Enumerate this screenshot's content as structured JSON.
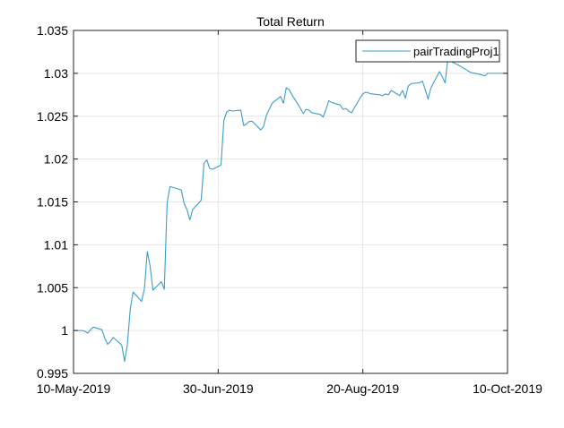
{
  "chart_data": {
    "type": "line",
    "title": "Total Return",
    "xlabel": "",
    "ylabel": "",
    "x_start": "2019-05-10",
    "x_end": "2019-10-10",
    "xlim": [
      "2019-05-10",
      "2019-10-10"
    ],
    "ylim": [
      0.995,
      1.035
    ],
    "x_ticks": [
      "2019-05-10",
      "2019-06-30",
      "2019-08-20",
      "2019-10-10"
    ],
    "x_tick_labels": [
      "10-May-2019",
      "30-Jun-2019",
      "20-Aug-2019",
      "10-Oct-2019"
    ],
    "y_ticks": [
      0.995,
      1,
      1.005,
      1.01,
      1.015,
      1.02,
      1.025,
      1.03,
      1.035
    ],
    "y_tick_labels": [
      "0.995",
      "1",
      "1.005",
      "1.01",
      "1.015",
      "1.02",
      "1.025",
      "1.03",
      "1.035"
    ],
    "grid": true,
    "legend_position": "top-right",
    "series": [
      {
        "name": "pairTradingProj1",
        "color": "#3d9dc7",
        "x": [
          "2019-05-10",
          "2019-05-13",
          "2019-05-14",
          "2019-05-15",
          "2019-05-16",
          "2019-05-17",
          "2019-05-20",
          "2019-05-21",
          "2019-05-22",
          "2019-05-23",
          "2019-05-24",
          "2019-05-27",
          "2019-05-28",
          "2019-05-29",
          "2019-05-30",
          "2019-05-31",
          "2019-06-03",
          "2019-06-04",
          "2019-06-05",
          "2019-06-06",
          "2019-06-07",
          "2019-06-10",
          "2019-06-11",
          "2019-06-12",
          "2019-06-13",
          "2019-06-14",
          "2019-06-17",
          "2019-06-18",
          "2019-06-19",
          "2019-06-20",
          "2019-06-21",
          "2019-06-24",
          "2019-06-25",
          "2019-06-26",
          "2019-06-27",
          "2019-06-28",
          "2019-07-01",
          "2019-07-02",
          "2019-07-03",
          "2019-07-04",
          "2019-07-05",
          "2019-07-08",
          "2019-07-09",
          "2019-07-10",
          "2019-07-11",
          "2019-07-12",
          "2019-07-15",
          "2019-07-16",
          "2019-07-17",
          "2019-07-18",
          "2019-07-19",
          "2019-07-22",
          "2019-07-23",
          "2019-07-24",
          "2019-07-25",
          "2019-07-26",
          "2019-07-29",
          "2019-07-30",
          "2019-07-31",
          "2019-08-01",
          "2019-08-02",
          "2019-08-05",
          "2019-08-06",
          "2019-08-07",
          "2019-08-08",
          "2019-08-09",
          "2019-08-12",
          "2019-08-13",
          "2019-08-14",
          "2019-08-15",
          "2019-08-16",
          "2019-08-19",
          "2019-08-20",
          "2019-08-21",
          "2019-08-22",
          "2019-08-23",
          "2019-08-26",
          "2019-08-27",
          "2019-08-28",
          "2019-08-29",
          "2019-08-30",
          "2019-09-02",
          "2019-09-03",
          "2019-09-04",
          "2019-09-05",
          "2019-09-06",
          "2019-09-09",
          "2019-09-10",
          "2019-09-11",
          "2019-09-12",
          "2019-09-13",
          "2019-09-16",
          "2019-09-17",
          "2019-09-18",
          "2019-09-19",
          "2019-09-20",
          "2019-09-23",
          "2019-09-24",
          "2019-09-25",
          "2019-09-26",
          "2019-09-27",
          "2019-09-30",
          "2019-10-01",
          "2019-10-02",
          "2019-10-03",
          "2019-10-04",
          "2019-10-07",
          "2019-10-08",
          "2019-10-09",
          "2019-10-10"
        ],
        "y": [
          1.0,
          1.0,
          0.9999,
          0.9997,
          1.0001,
          1.0004,
          1.0001,
          0.9991,
          0.9984,
          0.9987,
          0.9992,
          0.9983,
          0.9964,
          0.9984,
          1.0025,
          1.0045,
          1.0034,
          1.0049,
          1.0092,
          1.0075,
          1.0047,
          1.0057,
          1.0048,
          1.0149,
          1.0168,
          1.0167,
          1.0164,
          1.0148,
          1.0141,
          1.0129,
          1.0141,
          1.0152,
          1.0195,
          1.0199,
          1.0189,
          1.0188,
          1.0193,
          1.0245,
          1.0255,
          1.0257,
          1.0256,
          1.0257,
          1.0239,
          1.0241,
          1.0244,
          1.0244,
          1.0234,
          1.0238,
          1.0251,
          1.0258,
          1.0265,
          1.0273,
          1.0265,
          1.0283,
          1.0281,
          1.0275,
          1.0259,
          1.0253,
          1.0258,
          1.0257,
          1.0254,
          1.0252,
          1.0249,
          1.0258,
          1.0268,
          1.0266,
          1.0263,
          1.0258,
          1.0259,
          1.0256,
          1.0254,
          1.0271,
          1.0276,
          1.0278,
          1.0277,
          1.0276,
          1.0275,
          1.0274,
          1.0276,
          1.0275,
          1.028,
          1.0274,
          1.028,
          1.0271,
          1.0285,
          1.0288,
          1.0289,
          1.0291,
          1.0281,
          1.027,
          1.0283,
          1.0302,
          1.0296,
          1.0289,
          1.0318,
          1.0314,
          1.0309,
          1.0307,
          1.0305,
          1.0303,
          1.0301,
          1.0299,
          1.0298,
          1.0297,
          1.03,
          1.03,
          1.03,
          1.03,
          1.03,
          1.03
        ]
      }
    ]
  }
}
